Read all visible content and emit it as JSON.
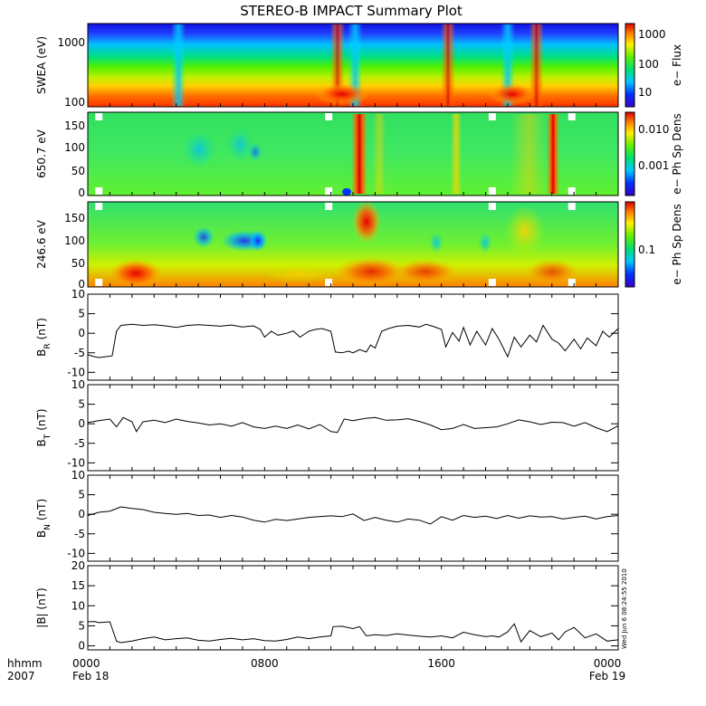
{
  "chart_data": {
    "title": "STEREO-B IMPACT Summary Plot",
    "stamp": "Wed Jun  6 08:24:55 2010",
    "x_axis": {
      "units_label": "hhmm",
      "year_label": "2007",
      "range_hours": [
        0,
        24
      ],
      "ticks": [
        {
          "x": 0,
          "time": "0000",
          "date": "Feb 18"
        },
        {
          "x": 8,
          "time": "0800",
          "date": ""
        },
        {
          "x": 16,
          "time": "1600",
          "date": ""
        },
        {
          "x": 24,
          "time": "0000",
          "date": "Feb 19"
        }
      ],
      "minor_step_hours": 1
    },
    "spectrograms": [
      {
        "id": "swea",
        "type": "heatmap",
        "ylabel": "SWEA (eV)",
        "y_scale": "log",
        "y_ticks": [
          "1000",
          "100"
        ],
        "colorbar_label": "e− Flux",
        "colorbar_ticks": [
          "1000",
          "100",
          "10"
        ],
        "event_times": [
          4.1,
          11.3,
          12.1,
          16.3,
          19.0,
          20.3
        ]
      },
      {
        "id": "pad650",
        "type": "heatmap",
        "ylabel": "650.7 eV",
        "y_scale": "linear",
        "ylim": [
          0,
          180
        ],
        "y_ticks": [
          "150",
          "100",
          "50",
          "0"
        ],
        "colorbar_label": "e− Ph Sp Dens",
        "colorbar_ticks": [
          "0.010",
          "0.001"
        ],
        "gap_times": [
          0.5,
          10.9,
          18.3,
          21.9
        ]
      },
      {
        "id": "pad246",
        "type": "heatmap",
        "ylabel": "246.6 eV",
        "y_scale": "linear",
        "ylim": [
          0,
          180
        ],
        "y_ticks": [
          "150",
          "100",
          "50",
          "0"
        ],
        "colorbar_label": "e− Ph Sp Dens",
        "colorbar_ticks": [
          "0.1"
        ],
        "gap_times": [
          0.5,
          10.9,
          18.3,
          21.9
        ]
      }
    ],
    "line_panels": [
      {
        "id": "br",
        "type": "line",
        "ylabel": "B",
        "ylabel_sub": "R",
        "ylabel_units": "(nT)",
        "ylim": [
          -12,
          10
        ],
        "y_ticks": [
          10,
          5,
          0,
          -5,
          -10
        ],
        "x": [
          0,
          0.3,
          0.5,
          0.8,
          1.1,
          1.3,
          1.5,
          2,
          2.5,
          3,
          3.5,
          4,
          4.5,
          5,
          5.5,
          6,
          6.5,
          7,
          7.5,
          7.8,
          8,
          8.3,
          8.6,
          9,
          9.3,
          9.6,
          10,
          10.3,
          10.6,
          11,
          11.2,
          11.5,
          11.8,
          12,
          12.3,
          12.6,
          12.8,
          13,
          13.3,
          13.6,
          14,
          14.5,
          15,
          15.3,
          15.6,
          16,
          16.2,
          16.5,
          16.8,
          17,
          17.3,
          17.6,
          18,
          18.3,
          18.6,
          19,
          19.3,
          19.6,
          20,
          20.3,
          20.6,
          21,
          21.3,
          21.6,
          22,
          22.3,
          22.6,
          23,
          23.3,
          23.6,
          24
        ],
        "y": [
          -5.5,
          -6,
          -6.2,
          -6,
          -5.8,
          0.5,
          2,
          2.3,
          2,
          2.2,
          1.9,
          1.5,
          2,
          2.2,
          2,
          1.8,
          2.1,
          1.6,
          1.9,
          1,
          -1,
          0.5,
          -0.5,
          0,
          0.6,
          -1,
          0.5,
          1,
          1.2,
          0.5,
          -4.8,
          -5,
          -4.6,
          -5,
          -4.2,
          -4.8,
          -3,
          -3.8,
          0.5,
          1.2,
          1.8,
          2,
          1.6,
          2.3,
          1.8,
          1,
          -3.5,
          0.2,
          -2,
          1.5,
          -3,
          0.5,
          -3,
          1.2,
          -1.5,
          -6,
          -1,
          -3.5,
          -0.5,
          -2.2,
          2,
          -1.5,
          -2.5,
          -4.5,
          -1.5,
          -4,
          -1.2,
          -3.2,
          0.5,
          -1,
          1.2
        ]
      },
      {
        "id": "bt",
        "type": "line",
        "ylabel": "B",
        "ylabel_sub": "T",
        "ylabel_units": "(nT)",
        "ylim": [
          -12,
          10
        ],
        "y_ticks": [
          10,
          5,
          0,
          -5,
          -10
        ],
        "x": [
          0,
          0.5,
          1,
          1.3,
          1.6,
          2,
          2.2,
          2.5,
          3,
          3.5,
          4,
          4.5,
          5,
          5.5,
          6,
          6.5,
          7,
          7.5,
          8,
          8.5,
          9,
          9.5,
          10,
          10.5,
          11,
          11.3,
          11.6,
          12,
          12.3,
          12.6,
          13,
          13.5,
          14,
          14.5,
          15,
          15.5,
          16,
          16.5,
          17,
          17.5,
          18,
          18.5,
          19,
          19.5,
          20,
          20.5,
          21,
          21.5,
          22,
          22.5,
          23,
          23.5,
          24
        ],
        "y": [
          0.3,
          0.8,
          1.2,
          -0.8,
          1.6,
          0.5,
          -2,
          0.5,
          0.9,
          0.3,
          1.2,
          0.6,
          0.2,
          -0.3,
          0,
          -0.6,
          0.3,
          -0.8,
          -1.2,
          -0.6,
          -1.2,
          -0.3,
          -1.3,
          -0.2,
          -2,
          -2.2,
          1.2,
          0.8,
          1.1,
          1.4,
          1.6,
          0.9,
          1,
          1.3,
          0.6,
          -0.3,
          -1.5,
          -1.2,
          -0.2,
          -1.2,
          -1,
          -0.8,
          0,
          1,
          0.5,
          -0.2,
          0.4,
          0.3,
          -0.6,
          0.3,
          -1,
          -2,
          -0.5
        ]
      },
      {
        "id": "bn",
        "type": "line",
        "ylabel": "B",
        "ylabel_sub": "N",
        "ylabel_units": "(nT)",
        "ylim": [
          -12,
          10
        ],
        "y_ticks": [
          10,
          5,
          0,
          -5,
          -10
        ],
        "x": [
          0,
          0.5,
          1,
          1.5,
          2,
          2.5,
          3,
          3.5,
          4,
          4.5,
          5,
          5.5,
          6,
          6.5,
          7,
          7.5,
          8,
          8.5,
          9,
          9.5,
          10,
          10.5,
          11,
          11.5,
          12,
          12.5,
          13,
          13.5,
          14,
          14.5,
          15,
          15.5,
          16,
          16.5,
          17,
          17.5,
          18,
          18.5,
          19,
          19.5,
          20,
          20.5,
          21,
          21.5,
          22,
          22.5,
          23,
          23.5,
          24
        ],
        "y": [
          -0.3,
          0.5,
          0.8,
          1.9,
          1.5,
          1.2,
          0.5,
          0.2,
          0,
          0.2,
          -0.3,
          -0.2,
          -0.8,
          -0.3,
          -0.7,
          -1.5,
          -2,
          -1.3,
          -1.6,
          -1.2,
          -0.8,
          -0.6,
          -0.4,
          -0.6,
          0.1,
          -1.6,
          -0.8,
          -1.5,
          -2,
          -1.2,
          -1.5,
          -2.5,
          -0.6,
          -1.5,
          -0.3,
          -0.8,
          -0.5,
          -1.1,
          -0.3,
          -1,
          -0.4,
          -0.7,
          -0.6,
          -1.2,
          -0.8,
          -0.5,
          -1.2,
          -0.6,
          -0.3
        ]
      },
      {
        "id": "bmag",
        "type": "line",
        "ylabel": "|B| (nT)",
        "ylim": [
          -1,
          20
        ],
        "y_ticks": [
          20,
          15,
          10,
          5,
          0
        ],
        "x": [
          0,
          0.3,
          0.5,
          0.8,
          1,
          1.3,
          1.5,
          2,
          2.5,
          3,
          3.5,
          4,
          4.5,
          5,
          5.5,
          6,
          6.5,
          7,
          7.5,
          8,
          8.5,
          9,
          9.5,
          10,
          10.5,
          11,
          11.1,
          11.5,
          12,
          12.3,
          12.6,
          13,
          13.5,
          14,
          14.5,
          15,
          15.5,
          16,
          16.5,
          17,
          17.5,
          18,
          18.3,
          18.6,
          19,
          19.3,
          19.6,
          20,
          20.5,
          21,
          21.3,
          21.6,
          22,
          22.5,
          23,
          23.5,
          24
        ],
        "y": [
          6,
          6.1,
          5.8,
          5.9,
          6,
          1.2,
          0.8,
          1.2,
          1.8,
          2.2,
          1.5,
          1.8,
          2,
          1.4,
          1.2,
          1.6,
          1.9,
          1.5,
          1.8,
          1.3,
          1.2,
          1.6,
          2.2,
          1.8,
          2.2,
          2.5,
          4.8,
          4.9,
          4.3,
          4.8,
          2.5,
          2.8,
          2.6,
          3,
          2.7,
          2.4,
          2.2,
          2.5,
          2,
          3.4,
          2.8,
          2.3,
          2.5,
          2.2,
          3.5,
          5.5,
          1,
          3.8,
          2.3,
          3.2,
          1.5,
          3.5,
          4.6,
          2,
          3,
          1.2,
          1.5
        ]
      }
    ]
  }
}
